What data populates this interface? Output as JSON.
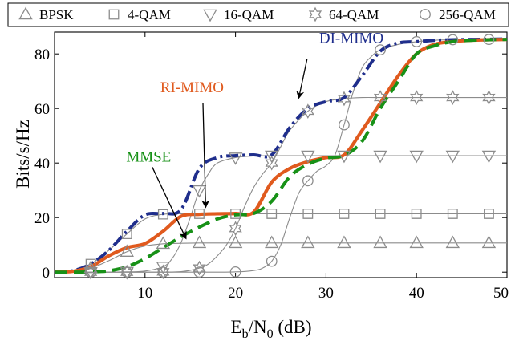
{
  "chart_data": {
    "type": "line",
    "xlabel": {
      "base": "E",
      "sub1": "b",
      "slash": "/N",
      "sub2": "0",
      "unit": " (dB)"
    },
    "ylabel": "Bits/s/Hz",
    "xlim": [
      1,
      50
    ],
    "ylim": [
      0,
      88
    ],
    "xticks": [
      "10",
      "20",
      "30",
      "40",
      "50"
    ],
    "yticks": [
      "0",
      "20",
      "40",
      "60",
      "80"
    ],
    "legend": [
      {
        "label": "BPSK",
        "marker": "triangle-up"
      },
      {
        "label": "4-QAM",
        "marker": "square"
      },
      {
        "label": "16-QAM",
        "marker": "triangle-down"
      },
      {
        "label": "64-QAM",
        "marker": "hexagram"
      },
      {
        "label": "256-QAM",
        "marker": "circle"
      }
    ],
    "modulation_series": [
      {
        "name": "BPSK",
        "marker": "triangle-up",
        "x": [
          0,
          2,
          4,
          6,
          8,
          10,
          12,
          14,
          16,
          18,
          20,
          22,
          24,
          26,
          28,
          30,
          32,
          34,
          36,
          38,
          40,
          42,
          44,
          46,
          48,
          50
        ],
        "y": [
          0,
          0.3,
          1.5,
          4.2,
          7.5,
          9.6,
          10.4,
          10.6,
          10.7,
          10.7,
          10.7,
          10.7,
          10.7,
          10.7,
          10.7,
          10.7,
          10.7,
          10.7,
          10.7,
          10.7,
          10.7,
          10.7,
          10.7,
          10.7,
          10.7,
          10.7
        ],
        "marker_x": [
          4,
          8,
          12,
          16,
          20,
          24,
          28,
          32,
          36,
          40,
          44,
          48
        ]
      },
      {
        "name": "4-QAM",
        "marker": "square",
        "x": [
          0,
          2,
          4,
          6,
          8,
          10,
          12,
          14,
          16,
          18,
          20,
          22,
          24,
          26,
          28,
          30,
          32,
          34,
          36,
          38,
          40,
          42,
          44,
          46,
          48,
          50
        ],
        "y": [
          0,
          0.5,
          3,
          8,
          14,
          19.5,
          21.2,
          21.4,
          21.4,
          21.4,
          21.4,
          21.4,
          21.4,
          21.4,
          21.4,
          21.4,
          21.4,
          21.4,
          21.4,
          21.4,
          21.4,
          21.4,
          21.4,
          21.4,
          21.4,
          21.4
        ],
        "marker_x": [
          4,
          8,
          12,
          16,
          20,
          24,
          28,
          32,
          36,
          40,
          44,
          48
        ]
      },
      {
        "name": "16-QAM",
        "marker": "triangle-down",
        "x": [
          0,
          4,
          8,
          10,
          12,
          13,
          14,
          15,
          16,
          17,
          18,
          20,
          22,
          24,
          26,
          28,
          30,
          32,
          34,
          36,
          38,
          40,
          42,
          44,
          46,
          48,
          50
        ],
        "y": [
          0,
          0,
          0.1,
          0.4,
          2,
          5,
          11,
          20,
          30,
          36,
          40,
          42,
          42.6,
          42.7,
          42.7,
          42.7,
          42.7,
          42.7,
          42.7,
          42.7,
          42.7,
          42.7,
          42.7,
          42.7,
          42.7,
          42.7,
          42.7
        ],
        "marker_x": [
          4,
          8,
          12,
          16,
          20,
          24,
          28,
          32,
          36,
          40,
          44,
          48
        ]
      },
      {
        "name": "64-QAM",
        "marker": "hexagram",
        "x": [
          0,
          10,
          14,
          16,
          17,
          18,
          19,
          20,
          21,
          22,
          23,
          24,
          25,
          26,
          28,
          30,
          32,
          34,
          36,
          38,
          40,
          42,
          44,
          46,
          48,
          50
        ],
        "y": [
          0,
          0,
          0.2,
          1.5,
          3,
          6,
          10,
          16,
          24,
          31,
          36,
          40,
          46,
          52,
          59,
          62.5,
          63.6,
          64,
          64,
          64,
          64,
          64,
          64,
          64,
          64,
          64
        ],
        "marker_x": [
          4,
          8,
          12,
          16,
          20,
          24,
          28,
          32,
          36,
          40,
          44,
          48
        ]
      },
      {
        "name": "256-QAM",
        "marker": "circle",
        "x": [
          0,
          16,
          20,
          22,
          23,
          24,
          25,
          26,
          27,
          28,
          29,
          30,
          31,
          32,
          33,
          34,
          35,
          36,
          38,
          40,
          42,
          44,
          46,
          48,
          50
        ],
        "y": [
          0,
          0,
          0.1,
          0.6,
          1.5,
          4,
          10,
          20,
          29,
          33.5,
          37,
          39,
          43,
          54,
          66,
          75,
          79,
          81.5,
          83.5,
          84.5,
          85,
          85.2,
          85.3,
          85.3,
          85.3
        ],
        "marker_x": [
          4,
          8,
          12,
          16,
          20,
          24,
          28,
          32,
          36,
          40,
          44,
          48
        ]
      }
    ],
    "receiver_series": [
      {
        "name": "DI-MIMO",
        "color": "#1f2e8c",
        "style": "dash-dot",
        "x": [
          0,
          2,
          4,
          6,
          8,
          10,
          12,
          14,
          16,
          18,
          20,
          22,
          24,
          26,
          28,
          30,
          32,
          34,
          36,
          38,
          40,
          42,
          44,
          46,
          48,
          50
        ],
        "y": [
          0,
          0.5,
          3,
          8,
          15,
          21,
          21.5,
          23,
          38,
          42,
          42.7,
          43,
          43,
          53,
          60,
          62.5,
          64,
          72,
          81,
          84,
          84.5,
          85,
          85.2,
          85.3,
          85.4,
          85.5
        ]
      },
      {
        "name": "RI-MIMO",
        "color": "#e05a1e",
        "style": "solid",
        "x": [
          0,
          2,
          4,
          6,
          8,
          10,
          12,
          14,
          16,
          18,
          20,
          22,
          24,
          26,
          28,
          30,
          32,
          34,
          36,
          38,
          40,
          42,
          44,
          46,
          48,
          50
        ],
        "y": [
          0,
          0.3,
          2,
          6,
          9,
          10.5,
          15,
          20.5,
          21.2,
          21.4,
          21.5,
          22,
          33,
          38,
          40.5,
          42,
          43,
          52,
          62,
          72,
          80,
          83.5,
          84.5,
          85,
          85.2,
          85.3
        ]
      },
      {
        "name": "MMSE",
        "color": "#179117",
        "style": "dashed",
        "x": [
          0,
          2,
          4,
          6,
          8,
          10,
          12,
          14,
          16,
          18,
          20,
          22,
          24,
          26,
          28,
          30,
          32,
          34,
          36,
          38,
          40,
          42,
          44,
          46,
          48,
          50
        ],
        "y": [
          0,
          0,
          0.1,
          0.5,
          2,
          5,
          9,
          13,
          16.5,
          19.5,
          21,
          21.5,
          26,
          35,
          39.5,
          41.8,
          42.8,
          48,
          60,
          70,
          80,
          83,
          84.5,
          85,
          85.2,
          85.3
        ]
      }
    ],
    "annotations": [
      {
        "text": "DI-MIMO",
        "color": "#1f2e8c",
        "anchor": [
          31.7,
          83.5
        ],
        "target": [
          27,
          64
        ]
      },
      {
        "text": "RI-MIMO",
        "color": "#e05a1e",
        "anchor": [
          14.6,
          63.5
        ],
        "target": [
          16.7,
          24
        ]
      },
      {
        "text": "MMSE",
        "color": "#179117",
        "anchor": [
          9.9,
          38.5
        ],
        "target": [
          14.5,
          12.5
        ]
      }
    ]
  }
}
